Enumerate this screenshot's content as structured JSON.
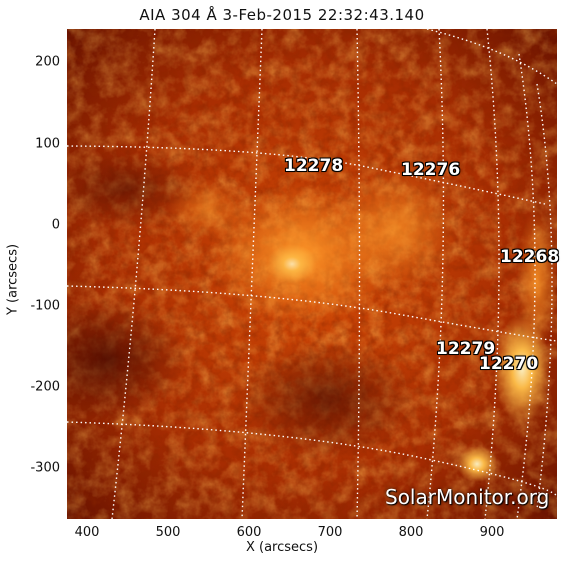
{
  "header": {
    "title": "AIA 304 Å  3-Feb-2015 22:32:43.140"
  },
  "axes": {
    "x_label": "X (arcsecs)",
    "y_label": "Y (arcsecs)",
    "x_ticks": [
      "400",
      "500",
      "600",
      "700",
      "800",
      "900"
    ],
    "y_ticks": [
      "200",
      "100",
      "0",
      "-100",
      "-200",
      "-300"
    ]
  },
  "active_regions": [
    {
      "label": "12278"
    },
    {
      "label": "12276"
    },
    {
      "label": "12268"
    },
    {
      "label": "12279"
    },
    {
      "label": "12270"
    }
  ],
  "watermark": "SolarMonitor.org",
  "colors": {
    "background": "#ffffff",
    "solar_dark": "#3a0400",
    "solar_mid": "#c63a00",
    "solar_bright": "#ffb24a",
    "grid_line": "#ffffff"
  }
}
